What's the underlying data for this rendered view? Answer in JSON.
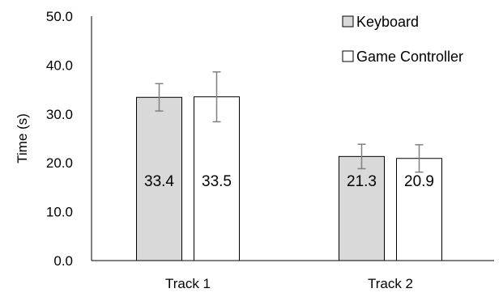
{
  "chart_data": {
    "type": "bar",
    "categories": [
      "Track 1",
      "Track 2"
    ],
    "series": [
      {
        "name": "Keyboard",
        "values": [
          33.4,
          21.3
        ],
        "errors": [
          2.8,
          2.5
        ],
        "color": "#d9d9d9"
      },
      {
        "name": "Game Controller",
        "values": [
          33.5,
          20.9
        ],
        "errors": [
          5.1,
          2.8
        ],
        "color": "#ffffff"
      }
    ],
    "data_labels": [
      [
        "33.4",
        "21.3"
      ],
      [
        "33.5",
        "20.9"
      ]
    ],
    "ylabel": "Time (s)",
    "xlabel": "",
    "ylim": [
      0,
      50
    ],
    "yticks": [
      "0.0",
      "10.0",
      "20.0",
      "30.0",
      "40.0",
      "50.0"
    ],
    "legend_position": "top-right",
    "grid": false,
    "bar_outline_color": "#000000",
    "error_bar_color": "#808080"
  }
}
